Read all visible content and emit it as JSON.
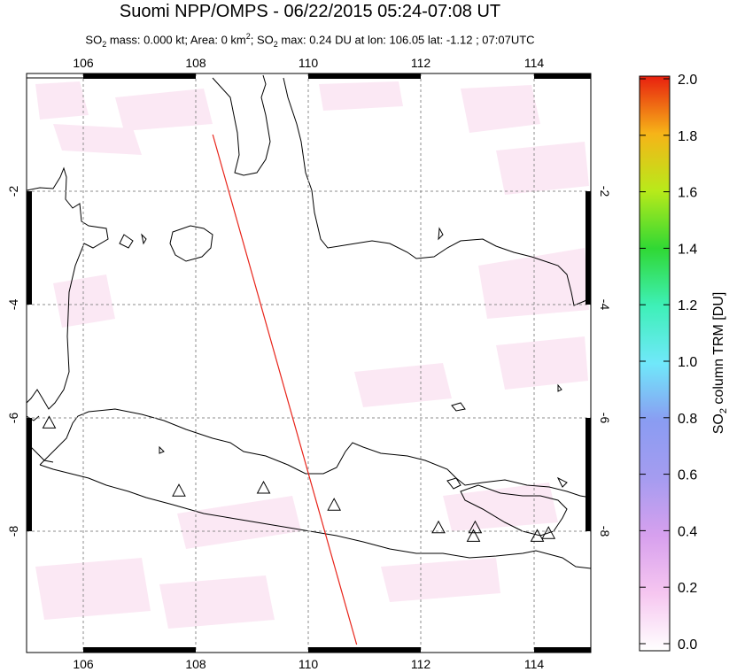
{
  "title": "Suomi NPP/OMPS - 06/22/2015 05:24-07:08 UT",
  "subtitle_parts": {
    "a": "SO",
    "a_sub": "2",
    "b": " mass: 0.000 kt; Area: 0 km",
    "b_sup": "2",
    "c": "; SO",
    "c_sub": "2",
    "d": " max: 0.24 DU at lon: 106.05 lat: -1.12 ; 07:07UTC"
  },
  "map": {
    "lon_range": [
      105,
      115
    ],
    "lat_range": [
      -10,
      -1.0
    ],
    "lon_ticks": [
      "106",
      "108",
      "110",
      "112",
      "114"
    ],
    "lat_ticks": [
      "-2",
      "-4",
      "-6",
      "-8"
    ],
    "track_lon": [
      108.3,
      110.85
    ],
    "track_lat": [
      -1.0,
      -10.0
    ],
    "volcanoes": [
      {
        "lon": 105.4,
        "lat": -6.1
      },
      {
        "lon": 107.7,
        "lat": -7.3
      },
      {
        "lon": 109.2,
        "lat": -7.25
      },
      {
        "lon": 110.45,
        "lat": -7.55
      },
      {
        "lon": 112.3,
        "lat": -7.95
      },
      {
        "lon": 112.95,
        "lat": -7.95
      },
      {
        "lon": 112.92,
        "lat": -8.1
      },
      {
        "lon": 114.05,
        "lat": -8.1
      },
      {
        "lon": 114.25,
        "lat": -8.05
      }
    ],
    "colors": {
      "track": "#e8241a",
      "grid": "#8c8c8c",
      "coast": "#000000",
      "haze": "#fbe6f3"
    }
  },
  "colorbar": {
    "label": "SO",
    "label_sub": "2",
    "label_rest": " column TRM [DU]",
    "ticks": [
      "0.0",
      "0.2",
      "0.4",
      "0.6",
      "0.8",
      "1.0",
      "1.2",
      "1.4",
      "1.6",
      "1.8",
      "2.0"
    ],
    "stops": [
      "#ffffff",
      "#f4a0f0",
      "#b79cf0",
      "#8a8cf0",
      "#6eecfa",
      "#2ef2a0",
      "#2bd92b",
      "#a6e81c",
      "#f0f01a",
      "#f7a518",
      "#e81a10"
    ]
  }
}
